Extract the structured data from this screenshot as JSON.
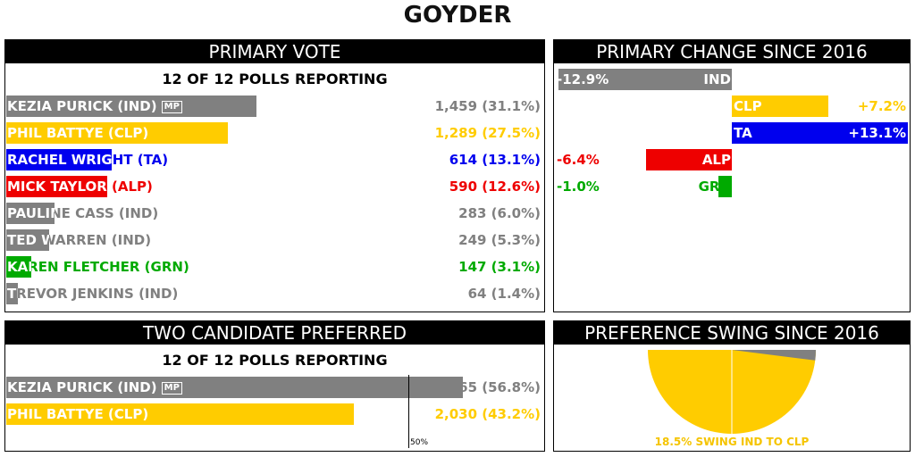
{
  "title": "GOYDER",
  "primary": {
    "header": "PRIMARY VOTE",
    "reporting": "12 OF 12 POLLS REPORTING",
    "candidates": [
      {
        "name": "KEZIA PURICK (IND)",
        "mp": "MP",
        "votes_text": "1,459 (31.1%)",
        "pct": 31.1,
        "color": "#808080"
      },
      {
        "name": "PHIL BATTYE (CLP)",
        "mp": "",
        "votes_text": "1,289 (27.5%)",
        "pct": 27.5,
        "color": "#ffcc00"
      },
      {
        "name": "RACHEL WRIGHT (TA)",
        "mp": "",
        "votes_text": "614 (13.1%)",
        "pct": 13.1,
        "color": "#0000ee"
      },
      {
        "name": "MICK TAYLOR (ALP)",
        "mp": "",
        "votes_text": "590 (12.6%)",
        "pct": 12.6,
        "color": "#ee0000"
      },
      {
        "name": "PAULINE CASS (IND)",
        "mp": "",
        "votes_text": "283 (6.0%)",
        "pct": 6.0,
        "color": "#808080"
      },
      {
        "name": "TED WARREN (IND)",
        "mp": "",
        "votes_text": "249 (5.3%)",
        "pct": 5.3,
        "color": "#808080"
      },
      {
        "name": "KAREN FLETCHER (GRN)",
        "mp": "",
        "votes_text": "147 (3.1%)",
        "pct": 3.1,
        "color": "#00aa00"
      },
      {
        "name": "TREVOR JENKINS (IND)",
        "mp": "",
        "votes_text": "64 (1.4%)",
        "pct": 1.4,
        "color": "#808080"
      }
    ]
  },
  "change": {
    "header": "PRIMARY CHANGE SINCE 2016",
    "parties": [
      {
        "party": "IND",
        "change": -12.9,
        "label": "-12.9%",
        "color": "#808080"
      },
      {
        "party": "CLP",
        "change": 7.2,
        "label": "+7.2%",
        "color": "#ffcc00"
      },
      {
        "party": "TA",
        "change": 13.1,
        "label": "+13.1%",
        "color": "#0000ee"
      },
      {
        "party": "ALP",
        "change": -6.4,
        "label": "-6.4%",
        "color": "#ee0000"
      },
      {
        "party": "GRN",
        "change": -1.0,
        "label": "-1.0%",
        "color": "#00aa00"
      }
    ]
  },
  "tcp": {
    "header": "TWO CANDIDATE PREFERRED",
    "reporting": "12 OF 12 POLLS REPORTING",
    "fifty_label": "50%",
    "candidates": [
      {
        "name": "KEZIA PURICK (IND)",
        "mp": "MP",
        "votes_text": "2,665 (56.8%)",
        "pct": 56.8,
        "color": "#808080"
      },
      {
        "name": "PHIL BATTYE (CLP)",
        "mp": "",
        "votes_text": "2,030 (43.2%)",
        "pct": 43.2,
        "color": "#ffcc00"
      }
    ]
  },
  "swing": {
    "header": "PREFERENCE SWING SINCE 2016",
    "text": "18.5% SWING IND TO CLP",
    "swing_pct": 18.5,
    "from_color": "#808080",
    "to_color": "#ffcc00"
  },
  "chart_data": [
    {
      "type": "bar",
      "title": "PRIMARY VOTE",
      "categories": [
        "KEZIA PURICK (IND)",
        "PHIL BATTYE (CLP)",
        "RACHEL WRIGHT (TA)",
        "MICK TAYLOR (ALP)",
        "PAULINE CASS (IND)",
        "TED WARREN (IND)",
        "KAREN FLETCHER (GRN)",
        "TREVOR JENKINS (IND)"
      ],
      "values": [
        31.1,
        27.5,
        13.1,
        12.6,
        6.0,
        5.3,
        3.1,
        1.4
      ],
      "votes": [
        1459,
        1289,
        614,
        590,
        283,
        249,
        147,
        64
      ]
    },
    {
      "type": "bar",
      "title": "PRIMARY CHANGE SINCE 2016",
      "categories": [
        "IND",
        "CLP",
        "TA",
        "ALP",
        "GRN"
      ],
      "values": [
        -12.9,
        7.2,
        13.1,
        -6.4,
        -1.0
      ]
    },
    {
      "type": "bar",
      "title": "TWO CANDIDATE PREFERRED",
      "categories": [
        "KEZIA PURICK (IND)",
        "PHIL BATTYE (CLP)"
      ],
      "values": [
        56.8,
        43.2
      ],
      "votes": [
        2665,
        2030
      ]
    },
    {
      "type": "pie",
      "title": "PREFERENCE SWING SINCE 2016",
      "values": [
        18.5
      ]
    }
  ]
}
